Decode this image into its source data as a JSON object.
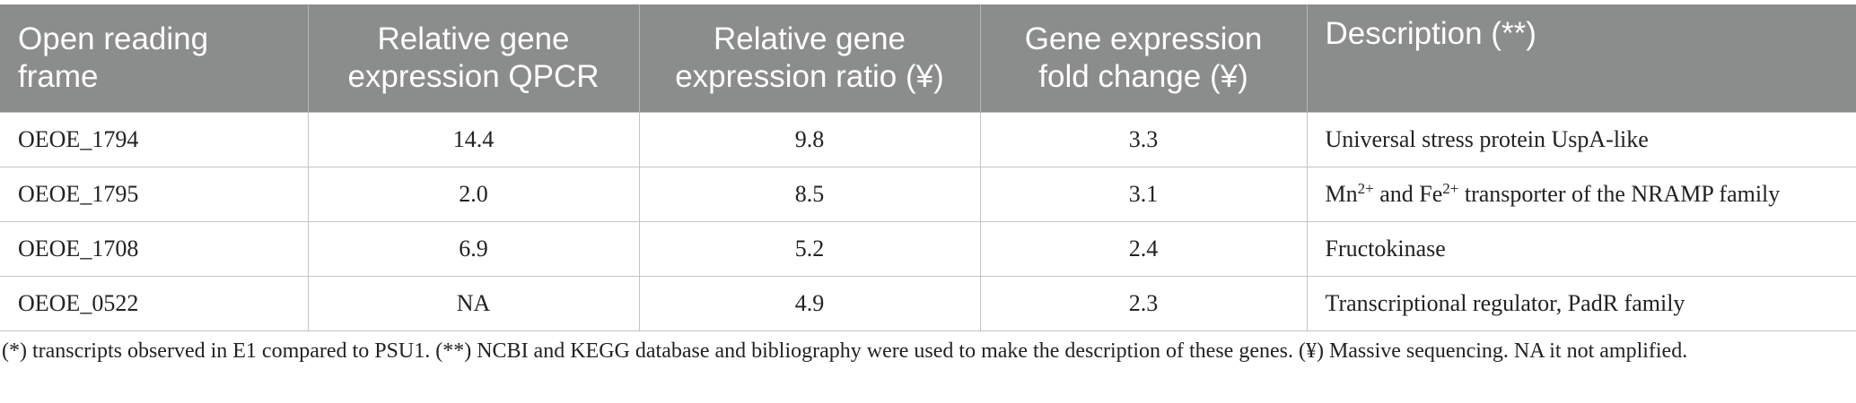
{
  "table": {
    "columns": [
      "Open reading frame",
      "Relative gene expression QPCR",
      "Relative gene expression ratio (¥)",
      "Gene expression fold change (¥)",
      "Description (**)"
    ],
    "rows": [
      [
        "OEOE_1794",
        "14.4",
        "9.8",
        "3.3",
        [
          "Universal stress protein UspA-like"
        ]
      ],
      [
        "OEOE_1795",
        "2.0",
        "8.5",
        "3.1",
        [
          "Mn",
          "2+",
          " and Fe",
          "2+",
          " transporter of the NRAMP family"
        ]
      ],
      [
        "OEOE_1708",
        "6.9",
        "5.2",
        "2.4",
        [
          "Fructokinase"
        ]
      ],
      [
        "OEOE_0522",
        "NA",
        "4.9",
        "2.3",
        [
          "Transcriptional regulator, PadR family"
        ]
      ]
    ]
  },
  "footnote": "(*) transcripts observed in E1 compared to PSU1. (**) NCBI and KEGG database and bibliography were used to make the description of these genes. (¥) Massive sequencing. NA it not amplified."
}
